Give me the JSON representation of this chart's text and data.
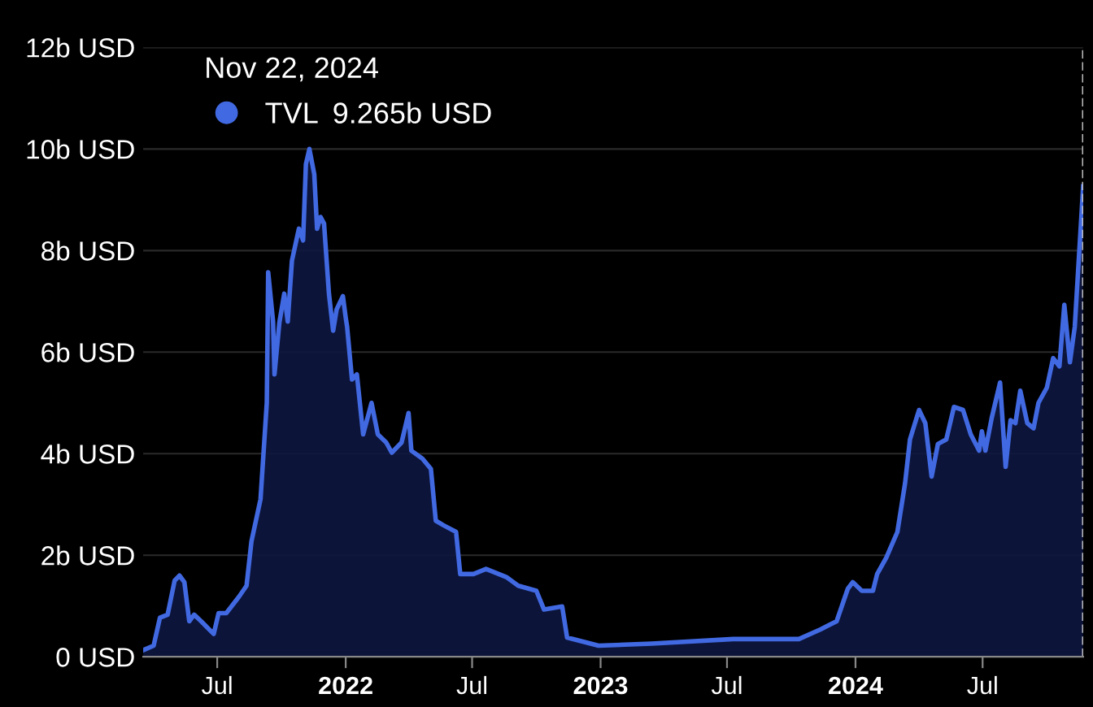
{
  "chart_data": {
    "type": "area",
    "annotations": [
      "Nov 22, 2024",
      "9.265b USD"
    ],
    "x": [
      "2021-03-17",
      "2021-04-01",
      "2021-04-10",
      "2021-04-21",
      "2021-05-01",
      "2021-05-08",
      "2021-05-15",
      "2021-05-22",
      "2021-05-29",
      "2021-06-08",
      "2021-06-26",
      "2021-07-03",
      "2021-07-14",
      "2021-08-01",
      "2021-08-12",
      "2021-08-19",
      "2021-09-01",
      "2021-09-10",
      "2021-09-12",
      "2021-09-19",
      "2021-09-21",
      "2021-09-28",
      "2021-10-05",
      "2021-10-10",
      "2021-10-16",
      "2021-10-26",
      "2021-11-01",
      "2021-11-05",
      "2021-11-10",
      "2021-11-17",
      "2021-11-21",
      "2021-11-26",
      "2021-12-01",
      "2021-12-08",
      "2021-12-14",
      "2021-12-19",
      "2021-12-28",
      "2022-01-01",
      "2022-01-03",
      "2022-01-10",
      "2022-01-17",
      "2022-01-26",
      "2022-02-07",
      "2022-02-16",
      "2022-02-28",
      "2022-03-08",
      "2022-03-22",
      "2022-04-01",
      "2022-04-05",
      "2022-04-21",
      "2022-05-03",
      "2022-05-10",
      "2022-05-21",
      "2022-06-08",
      "2022-06-14",
      "2022-07-03",
      "2022-07-21",
      "2022-08-19",
      "2022-09-05",
      "2022-10-01",
      "2022-10-12",
      "2022-11-07",
      "2022-11-14",
      "2022-12-29",
      "2023-03-15",
      "2023-07-10",
      "2023-10-12",
      "2023-11-12",
      "2023-12-05",
      "2023-12-21",
      "2023-12-28",
      "2024-01-10",
      "2024-01-26",
      "2024-02-01",
      "2024-02-14",
      "2024-03-01",
      "2024-03-12",
      "2024-03-19",
      "2024-04-01",
      "2024-04-10",
      "2024-04-19",
      "2024-04-28",
      "2024-05-10",
      "2024-05-21",
      "2024-06-03",
      "2024-06-14",
      "2024-06-26",
      "2024-06-30",
      "2024-07-05",
      "2024-07-14",
      "2024-07-26",
      "2024-08-03",
      "2024-08-10",
      "2024-08-17",
      "2024-08-24",
      "2024-09-03",
      "2024-09-12",
      "2024-09-19",
      "2024-10-01",
      "2024-10-10",
      "2024-10-19",
      "2024-10-26",
      "2024-11-03",
      "2024-11-10",
      "2024-11-22"
    ],
    "series": [
      {
        "name": "TVL",
        "color": "#4169e1",
        "values": [
          0.13,
          0.22,
          0.77,
          0.83,
          1.5,
          1.6,
          1.47,
          0.7,
          0.83,
          0.7,
          0.45,
          0.86,
          0.86,
          1.18,
          1.4,
          2.27,
          3.1,
          5.0,
          7.57,
          6.6,
          5.56,
          6.58,
          7.15,
          6.6,
          7.8,
          8.43,
          8.2,
          9.7,
          10.0,
          9.5,
          8.43,
          8.66,
          8.53,
          7.15,
          6.42,
          6.84,
          7.1,
          6.68,
          6.5,
          5.46,
          5.56,
          4.38,
          5.0,
          4.38,
          4.22,
          4.02,
          4.22,
          4.8,
          4.06,
          3.9,
          3.7,
          2.68,
          2.59,
          2.46,
          1.63,
          1.63,
          1.73,
          1.57,
          1.4,
          1.3,
          0.93,
          0.99,
          0.38,
          0.22,
          0.26,
          0.35,
          0.35,
          0.54,
          0.7,
          1.34,
          1.47,
          1.3,
          1.3,
          1.63,
          1.95,
          2.46,
          3.42,
          4.28,
          4.86,
          4.6,
          3.55,
          4.19,
          4.28,
          4.92,
          4.86,
          4.38,
          4.06,
          4.44,
          4.06,
          4.7,
          5.4,
          3.74,
          4.66,
          4.6,
          5.24,
          4.6,
          4.5,
          5.0,
          5.3,
          5.88,
          5.72,
          6.93,
          5.8,
          6.5,
          9.265
        ]
      }
    ],
    "xlim": [
      "2021-03-17",
      "2024-11-22"
    ],
    "xticks": [
      {
        "value": "2021-07-01",
        "label": "Jul"
      },
      {
        "value": "2022-01-01",
        "label": "2022"
      },
      {
        "value": "2022-07-01",
        "label": "Jul"
      },
      {
        "value": "2023-01-01",
        "label": "2023"
      },
      {
        "value": "2023-07-01",
        "label": "Jul"
      },
      {
        "value": "2024-01-01",
        "label": "2024"
      },
      {
        "value": "2024-07-01",
        "label": "Jul"
      }
    ],
    "ylim": [
      0,
      12
    ],
    "yticks": [
      {
        "value": 0,
        "label": "0 USD"
      },
      {
        "value": 2,
        "label": "2b USD"
      },
      {
        "value": 4,
        "label": "4b USD"
      },
      {
        "value": 6,
        "label": "6b USD"
      },
      {
        "value": 8,
        "label": "8b USD"
      },
      {
        "value": 10,
        "label": "10b USD"
      },
      {
        "value": 12,
        "label": "12b USD"
      }
    ],
    "ref_lines": [
      {
        "axis": "x",
        "value": "2024-11-22",
        "color": "#cccccc",
        "line_style": "dashed"
      }
    ],
    "grid": "y",
    "legend": "top left",
    "marker": "none",
    "line_style": "solid"
  }
}
